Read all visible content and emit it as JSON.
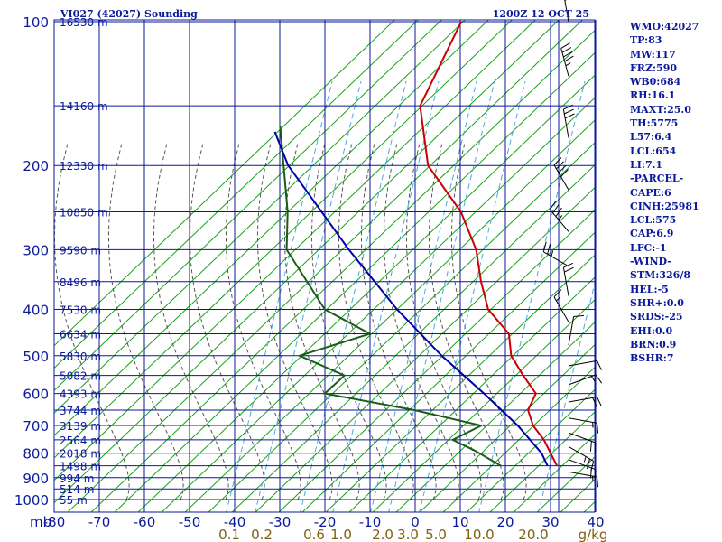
{
  "header": {
    "station": "VI027 (42027) Sounding",
    "time": "1200Z 12 OCT 25"
  },
  "stats": [
    "WMO:42027",
    "TP:83",
    "MW:117",
    "FRZ:590",
    "WB0:684",
    "RH:16.1",
    "MAXT:25.0",
    "TH:5775",
    "L57:6.4",
    "LCL:654",
    "LI:7.1",
    "-PARCEL-",
    "CAPE:6",
    "CINH:25981",
    "LCL:575",
    "CAP:6.9",
    "LFC:-1",
    "-WIND-",
    "STM:326/8",
    "HEL:-5",
    "SHR+:0.0",
    "SRDS:-25",
    "EHI:0.0",
    "BRN:0.9",
    "BSHR:7"
  ],
  "colors": {
    "frame": "#0a1a9a",
    "dry_adiabat": "#1aa01a",
    "moist_adiabat": "#555555",
    "mixing_ratio": "#4aa8e0",
    "temperature": "#cc0000",
    "dewpoint": "#1a5c1a",
    "parcel": "#0000aa",
    "mixing_label": "#806010"
  },
  "chart_data": {
    "type": "skew-t",
    "title": "VI027 (42027) Sounding",
    "xlabel": "",
    "ylabel": "mb",
    "x_unit_label": "g/kg",
    "pressure_ticks": [
      100,
      200,
      300,
      400,
      500,
      600,
      700,
      800,
      900,
      1000
    ],
    "pressure_tick_labels": [
      "100",
      "200",
      "300",
      "400",
      "500",
      "600",
      "700",
      "800",
      "900",
      "1000"
    ],
    "temperature_ticks": [
      -80,
      -70,
      -60,
      -50,
      -40,
      -30,
      -20,
      -10,
      0,
      10,
      20,
      30,
      40
    ],
    "temperature_tick_labels": [
      "-80",
      "-70",
      "-60",
      "-50",
      "-40",
      "-30",
      "-20",
      "-10",
      "0",
      "10",
      "20",
      "30",
      "40"
    ],
    "mixing_ratio_labels": [
      "0.1",
      "0.2",
      "0.6",
      "1.0",
      "2.0",
      "3.0",
      "5.0",
      "10.0",
      "20.0"
    ],
    "height_labels": [
      {
        "p": 100,
        "text": "16530 m"
      },
      {
        "p": 150,
        "text": "14160 m"
      },
      {
        "p": 200,
        "text": "12330 m"
      },
      {
        "p": 250,
        "text": "10850 m"
      },
      {
        "p": 300,
        "text": "9590 m"
      },
      {
        "p": 350,
        "text": "8496 m"
      },
      {
        "p": 400,
        "text": "7530 m"
      },
      {
        "p": 450,
        "text": "6634 m"
      },
      {
        "p": 500,
        "text": "5830 m"
      },
      {
        "p": 550,
        "text": "5082 m"
      },
      {
        "p": 600,
        "text": "4393 m"
      },
      {
        "p": 650,
        "text": "3744 m"
      },
      {
        "p": 700,
        "text": "3139 m"
      },
      {
        "p": 750,
        "text": "2564 m"
      },
      {
        "p": 800,
        "text": "2018 m"
      },
      {
        "p": 850,
        "text": "1498 m"
      },
      {
        "p": 900,
        "text": "994 m"
      },
      {
        "p": 950,
        "text": "514 m"
      },
      {
        "p": 1000,
        "text": "55 m"
      }
    ],
    "series": [
      {
        "name": "temperature",
        "points": [
          {
            "p": 100,
            "t": -79.7
          },
          {
            "p": 150,
            "t": -73.0
          },
          {
            "p": 200,
            "t": -60.0
          },
          {
            "p": 250,
            "t": -44.0
          },
          {
            "p": 300,
            "t": -33.5
          },
          {
            "p": 350,
            "t": -26.4
          },
          {
            "p": 400,
            "t": -19.6
          },
          {
            "p": 450,
            "t": -10.4
          },
          {
            "p": 500,
            "t": -5.8
          },
          {
            "p": 550,
            "t": 0.6
          },
          {
            "p": 600,
            "t": 6.8
          },
          {
            "p": 650,
            "t": 8.2
          },
          {
            "p": 700,
            "t": 12.2
          },
          {
            "p": 750,
            "t": 17.3
          },
          {
            "p": 800,
            "t": 21.3
          },
          {
            "p": 850,
            "t": 25.1
          }
        ]
      },
      {
        "name": "dewpoint",
        "points": [
          {
            "p": 165,
            "t": -100.3
          },
          {
            "p": 250,
            "t": -82.4
          },
          {
            "p": 300,
            "t": -75.5
          },
          {
            "p": 400,
            "t": -55.8
          },
          {
            "p": 450,
            "t": -41.2
          },
          {
            "p": 500,
            "t": -52.7
          },
          {
            "p": 550,
            "t": -39.0
          },
          {
            "p": 600,
            "t": -40.0
          },
          {
            "p": 650,
            "t": -17.0
          },
          {
            "p": 700,
            "t": 0.7
          },
          {
            "p": 750,
            "t": -2.9
          },
          {
            "p": 790,
            "t": 4.0
          },
          {
            "p": 850,
            "t": 12.7
          }
        ]
      },
      {
        "name": "parcel",
        "points": [
          {
            "p": 170,
            "t": -100.3
          },
          {
            "p": 200,
            "t": -91.0
          },
          {
            "p": 300,
            "t": -61.7
          },
          {
            "p": 400,
            "t": -39.8
          },
          {
            "p": 500,
            "t": -21.2
          },
          {
            "p": 600,
            "t": -4.7
          },
          {
            "p": 700,
            "t": 8.8
          },
          {
            "p": 800,
            "t": 19.3
          },
          {
            "p": 850,
            "t": 23.0
          }
        ]
      }
    ],
    "wind_barbs": [
      {
        "p": 100,
        "dir": 350,
        "spd": 55
      },
      {
        "p": 130,
        "dir": 345,
        "spd": 45
      },
      {
        "p": 175,
        "dir": 350,
        "spd": 30
      },
      {
        "p": 225,
        "dir": 330,
        "spd": 40
      },
      {
        "p": 275,
        "dir": 320,
        "spd": 35
      },
      {
        "p": 325,
        "dir": 300,
        "spd": 25
      },
      {
        "p": 375,
        "dir": 350,
        "spd": 20
      },
      {
        "p": 425,
        "dir": 330,
        "spd": 15
      },
      {
        "p": 475,
        "dir": 10,
        "spd": 10
      },
      {
        "p": 525,
        "dir": 80,
        "spd": 10
      },
      {
        "p": 575,
        "dir": 70,
        "spd": 15
      },
      {
        "p": 625,
        "dir": 80,
        "spd": 20
      },
      {
        "p": 675,
        "dir": 100,
        "spd": 15
      },
      {
        "p": 725,
        "dir": 110,
        "spd": 20
      },
      {
        "p": 775,
        "dir": 120,
        "spd": 25
      },
      {
        "p": 825,
        "dir": 110,
        "spd": 20
      },
      {
        "p": 875,
        "dir": 100,
        "spd": 15
      }
    ],
    "xlim": [
      -80,
      40
    ],
    "ylim": [
      100,
      1000
    ],
    "scale": "log-pressure",
    "grid": true
  }
}
